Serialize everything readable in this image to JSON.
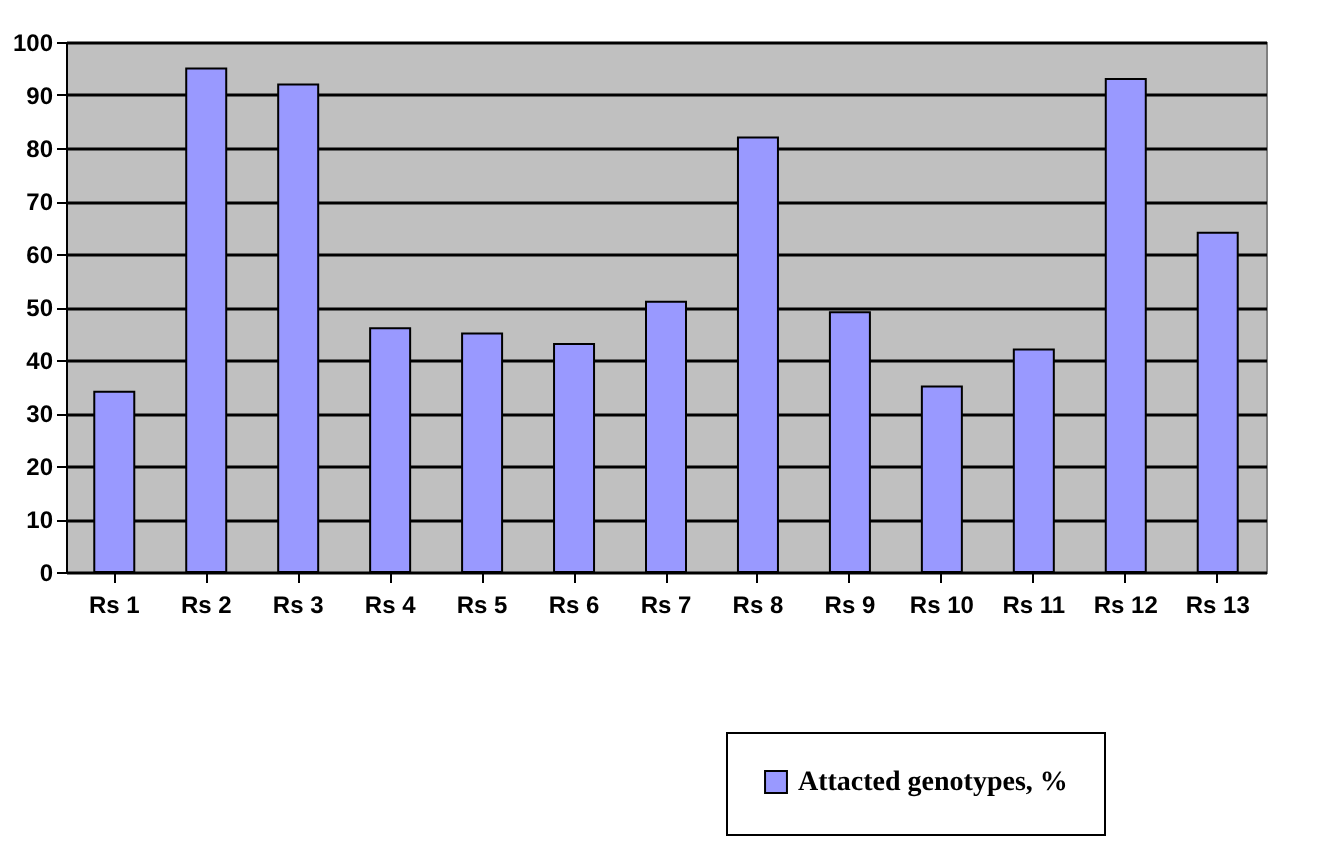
{
  "chart_data": {
    "type": "bar",
    "categories": [
      "Rs 1",
      "Rs 2",
      "Rs 3",
      "Rs 4",
      "Rs 5",
      "Rs 6",
      "Rs 7",
      "Rs 8",
      "Rs 9",
      "Rs 10",
      "Rs 11",
      "Rs 12",
      "Rs 13"
    ],
    "series": [
      {
        "name": "Attacted genotypes, %",
        "color": "#9999ff",
        "values": [
          34,
          95,
          92,
          46,
          45,
          43,
          51,
          82,
          49,
          35,
          42,
          93,
          64
        ]
      }
    ],
    "ylim": [
      0,
      100
    ],
    "yticks": [
      0,
      10,
      20,
      30,
      40,
      50,
      60,
      70,
      80,
      90,
      100
    ],
    "grid": "y",
    "legend": "bottom right"
  }
}
